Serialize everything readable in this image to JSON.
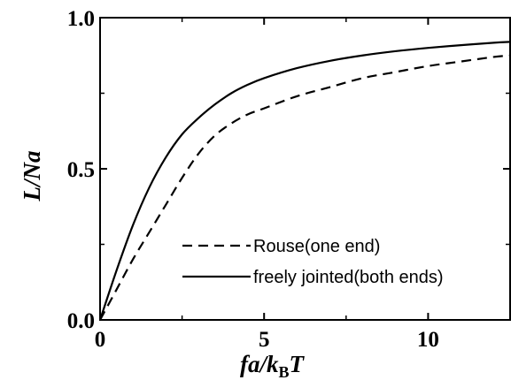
{
  "chart_data": {
    "type": "line",
    "xlabel": {
      "main": "fa/k",
      "sub": "B",
      "tail": "T"
    },
    "ylabel": "L/Na",
    "xlim": [
      0,
      12.5
    ],
    "ylim": [
      0,
      1.0
    ],
    "x_ticks": [
      0,
      5,
      10
    ],
    "x_tick_labels": [
      "0",
      "5",
      "10"
    ],
    "y_ticks": [
      0.0,
      0.5,
      1.0
    ],
    "y_tick_labels": [
      "0.0",
      "0.5",
      "1.0"
    ],
    "grid": false,
    "legend_position": "lower-right",
    "series": [
      {
        "name": "Rouse(one end)",
        "style": "dashed",
        "color": "#000000",
        "x": [
          0,
          0.5,
          1,
          1.5,
          2,
          2.5,
          3,
          3.5,
          4,
          4.5,
          5,
          6,
          7,
          8,
          9,
          10,
          11,
          12,
          12.5
        ],
        "y": [
          0,
          0.1,
          0.2,
          0.29,
          0.38,
          0.47,
          0.55,
          0.61,
          0.65,
          0.68,
          0.7,
          0.74,
          0.77,
          0.8,
          0.82,
          0.84,
          0.855,
          0.87,
          0.875
        ]
      },
      {
        "name": "freely jointed(both ends)",
        "style": "solid",
        "color": "#000000",
        "x": [
          0,
          0.5,
          1,
          1.5,
          2,
          2.5,
          3,
          3.5,
          4,
          4.5,
          5,
          6,
          7,
          8,
          9,
          10,
          11,
          12,
          12.5
        ],
        "y": [
          0,
          0.163,
          0.313,
          0.438,
          0.537,
          0.614,
          0.668,
          0.713,
          0.75,
          0.778,
          0.8,
          0.833,
          0.857,
          0.875,
          0.889,
          0.9,
          0.909,
          0.917,
          0.92
        ]
      }
    ]
  }
}
